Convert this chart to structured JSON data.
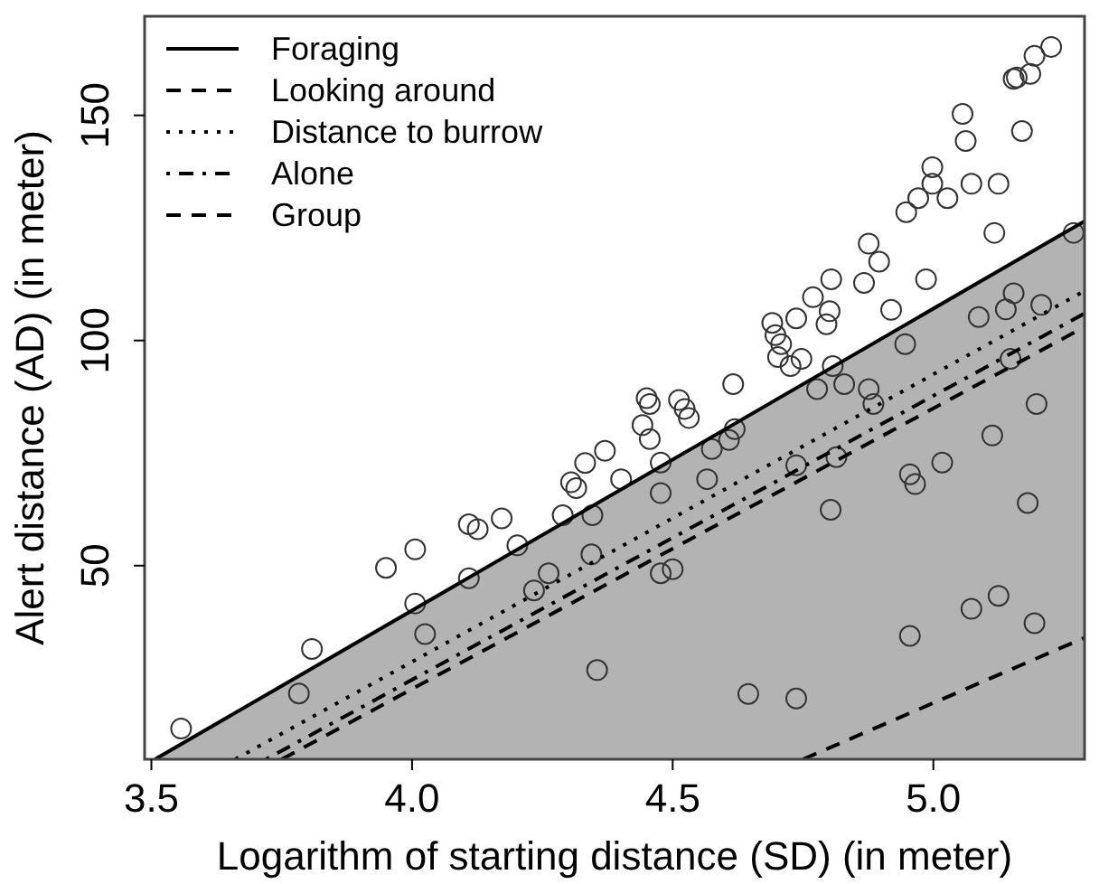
{
  "chart_data": {
    "type": "scatter",
    "xlabel": "Logarithm of starting distance (SD) (in meter)",
    "ylabel": "Alert distance (AD) (in meter)",
    "xlim": [
      3.487,
      5.29
    ],
    "ylim": [
      7,
      172
    ],
    "xticks": [
      {
        "value": 3.5,
        "label": "3.5"
      },
      {
        "value": 4.0,
        "label": "4.0"
      },
      {
        "value": 4.5,
        "label": "4.5"
      },
      {
        "value": 5.0,
        "label": "5.0"
      }
    ],
    "yticks": [
      50,
      100,
      150
    ],
    "grid": false,
    "legend": "top left",
    "series": [
      {
        "color": "#333333",
        "marker": "circle",
        "x": [
          3.557,
          3.783,
          3.808,
          3.95,
          4.006,
          4.006,
          4.025,
          4.109,
          4.126,
          4.172,
          4.109,
          4.202,
          4.234,
          4.262,
          4.289,
          4.305,
          4.315,
          4.332,
          4.37,
          4.401,
          4.346,
          4.344,
          4.355,
          4.616,
          4.691,
          4.697,
          4.708,
          4.702,
          4.726,
          4.747,
          4.737,
          4.769,
          4.804,
          4.801,
          4.795,
          4.867,
          4.876,
          4.896,
          4.919,
          4.948,
          4.971,
          4.998,
          4.998,
          5.027,
          4.986,
          5.056,
          5.062,
          5.073,
          5.125,
          5.117,
          5.154,
          5.16,
          5.186,
          5.194,
          5.226,
          5.17,
          5.269,
          4.946,
          5.087,
          5.139,
          5.154,
          5.207,
          5.148,
          4.876,
          4.829,
          4.777,
          4.807,
          4.45,
          4.456,
          4.442,
          4.456,
          4.512,
          4.523,
          4.531,
          4.477,
          4.477,
          4.575,
          4.608,
          4.619,
          4.566,
          4.477,
          4.5,
          4.645,
          4.737,
          4.737,
          4.803,
          4.814,
          4.885,
          4.955,
          4.965,
          5.017,
          5.113,
          5.198,
          5.181,
          4.955,
          5.073,
          5.125,
          5.194
        ],
        "values": [
          13.8,
          21.6,
          31.5,
          49.5,
          53.6,
          41.6,
          34.8,
          59.2,
          58.1,
          60.5,
          47.2,
          54.5,
          44.5,
          48.3,
          61.2,
          68.5,
          67.2,
          72.8,
          75.5,
          69.2,
          61.2,
          52.5,
          26.8,
          90.3,
          103.9,
          101.2,
          99.2,
          96.3,
          94.3,
          95.9,
          104.9,
          109.6,
          113.6,
          106.5,
          103.6,
          112.8,
          121.5,
          117.5,
          106.8,
          128.5,
          131.6,
          134.8,
          138.5,
          131.6,
          113.6,
          150.3,
          144.3,
          134.8,
          134.8,
          123.9,
          158.1,
          158.4,
          159.2,
          163.2,
          165.2,
          146.5,
          123.9,
          99.2,
          105.2,
          106.9,
          110.5,
          107.9,
          95.9,
          89.2,
          90.3,
          89.2,
          94.3,
          87.2,
          85.9,
          81.2,
          78.1,
          86.8,
          84.8,
          82.8,
          72.9,
          66.1,
          75.9,
          77.9,
          80.3,
          69.2,
          48.3,
          49.2,
          21.5,
          20.5,
          72.3,
          62.4,
          74.1,
          85.9,
          70.3,
          68.1,
          72.9,
          78.9,
          85.9,
          63.9,
          34.4,
          40.4,
          43.3,
          37.2
        ]
      },
      {
        "type": "line",
        "name": "Foraging",
        "color": "#000000",
        "line_style": "solid",
        "x": [
          3.507,
          5.29
        ],
        "values": [
          7,
          126.5
        ]
      },
      {
        "type": "line",
        "name": "Looking around",
        "color": "#000000",
        "line_style": "dashed",
        "x": [
          4.75,
          5.29
        ],
        "values": [
          7,
          34
        ]
      },
      {
        "type": "line",
        "name": "Distance to burrow",
        "color": "#000000",
        "line_style": "dotted",
        "x": [
          3.661,
          5.29
        ],
        "values": [
          7,
          111
        ]
      },
      {
        "type": "line",
        "name": "Alone",
        "color": "#000000",
        "line_style": "dashdot",
        "x": [
          3.72,
          5.29
        ],
        "values": [
          7,
          106
        ]
      },
      {
        "type": "line",
        "name": "Group",
        "color": "#000000",
        "line_style": "dashed",
        "x": [
          3.75,
          5.29
        ],
        "values": [
          7,
          103
        ]
      }
    ]
  }
}
